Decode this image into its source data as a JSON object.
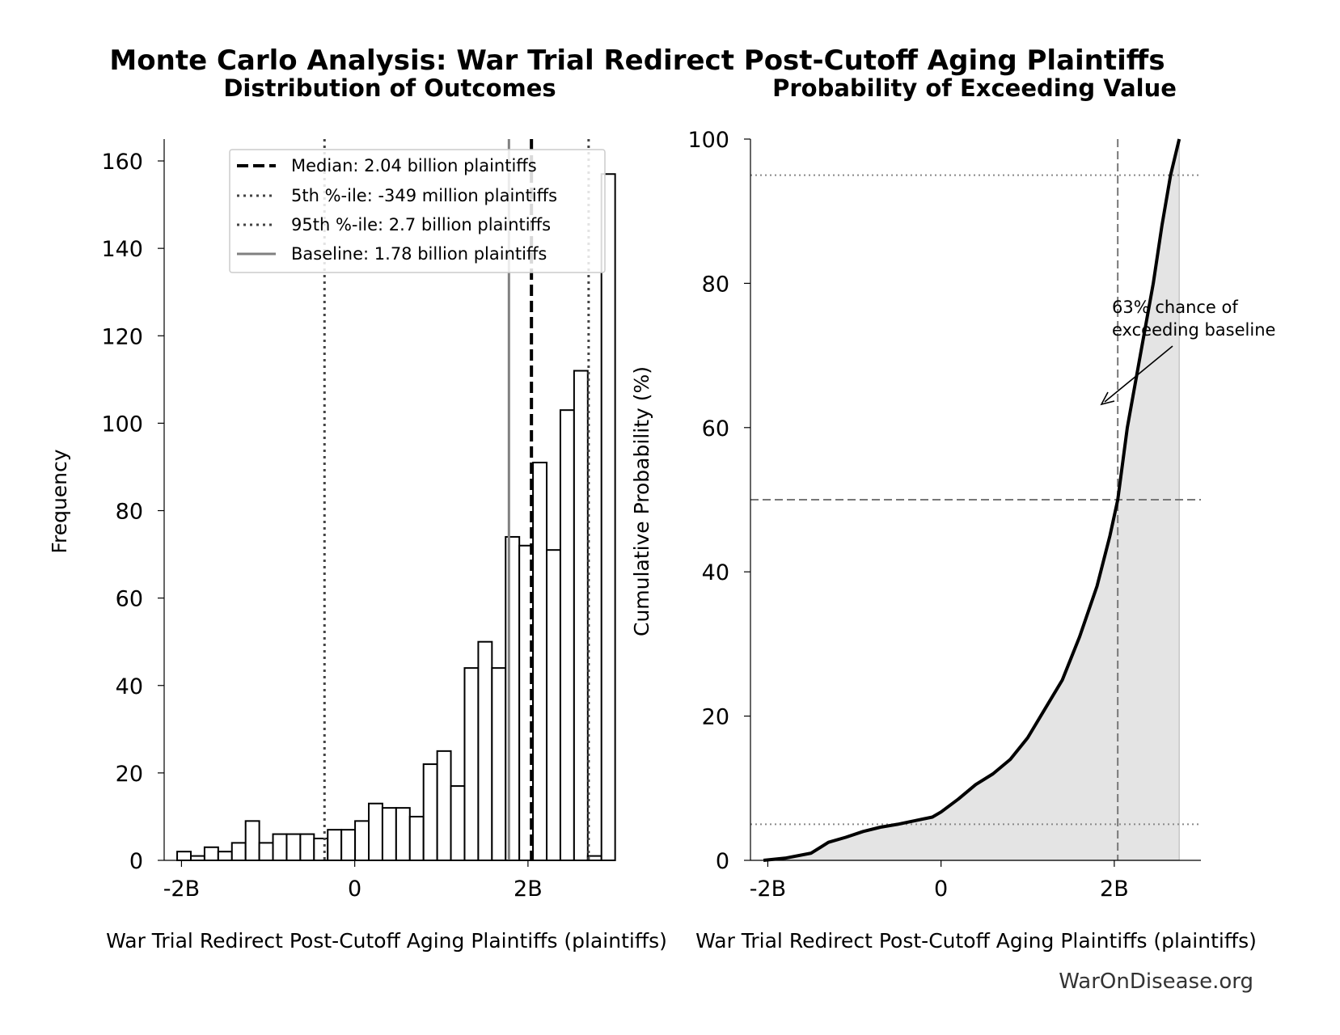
{
  "title": "Monte Carlo Analysis: War Trial Redirect Post-Cutoff Aging Plaintiffs",
  "watermark": "WarOnDisease.org",
  "chart_data": [
    {
      "type": "bar",
      "title": "Distribution of Outcomes",
      "xlabel": "War Trial Redirect Post-Cutoff Aging Plaintiffs (plaintiffs)",
      "ylabel": "Frequency",
      "xlim": [
        -2200000000,
        3000000000
      ],
      "ylim": [
        0,
        165
      ],
      "xticks": [
        -2000000000,
        0,
        2000000000
      ],
      "xtick_labels": [
        "-2B",
        "0",
        "2B"
      ],
      "yticks": [
        0,
        20,
        40,
        60,
        80,
        100,
        120,
        140,
        160
      ],
      "bin_start": -2050000000,
      "bin_width": 158000000,
      "values": [
        2,
        1,
        3,
        2,
        4,
        9,
        4,
        6,
        6,
        6,
        5,
        7,
        7,
        9,
        13,
        12,
        12,
        10,
        22,
        25,
        17,
        44,
        50,
        44,
        74,
        72,
        91,
        71,
        103,
        112,
        1,
        157
      ],
      "reference_lines": {
        "median": {
          "value": 2040000000,
          "label": "Median: 2.04 billion plaintiffs"
        },
        "p5": {
          "value": -349000000,
          "label": "5th %-ile: -349 million plaintiffs"
        },
        "p95": {
          "value": 2700000000,
          "label": "95th %-ile: 2.7 billion plaintiffs"
        },
        "baseline": {
          "value": 1780000000,
          "label": "Baseline: 1.78 billion plaintiffs"
        }
      },
      "grid": false,
      "legend": "top-right"
    },
    {
      "type": "area",
      "title": "Probability of Exceeding Value",
      "xlabel": "War Trial Redirect Post-Cutoff Aging Plaintiffs (plaintiffs)",
      "ylabel": "Cumulative Probability (%)",
      "xlim": [
        -2200000000,
        3000000000
      ],
      "ylim": [
        0,
        100
      ],
      "xticks": [
        -2000000000,
        0,
        2000000000
      ],
      "xtick_labels": [
        "-2B",
        "0",
        "2B"
      ],
      "yticks": [
        0,
        20,
        40,
        60,
        80,
        100
      ],
      "x": [
        -2050000000,
        -1800000000,
        -1500000000,
        -1300000000,
        -1100000000,
        -900000000,
        -700000000,
        -500000000,
        -300000000,
        -100000000,
        0,
        200000000,
        400000000,
        600000000,
        800000000,
        1000000000,
        1200000000,
        1400000000,
        1600000000,
        1800000000,
        1950000000,
        2040000000,
        2150000000,
        2300000000,
        2450000000,
        2550000000,
        2650000000,
        2750000000
      ],
      "y": [
        0,
        0.3,
        1,
        2.5,
        3.2,
        4,
        4.6,
        5,
        5.5,
        6,
        6.7,
        8.5,
        10.5,
        12,
        14,
        17,
        21,
        25,
        31,
        38,
        45,
        50,
        60,
        70,
        80,
        88,
        95,
        100
      ],
      "hlines": [
        5,
        50,
        95
      ],
      "vline": 2040000000,
      "annotation": {
        "line1": "63% chance of",
        "line2": "exceeding baseline"
      },
      "grid": false
    }
  ]
}
